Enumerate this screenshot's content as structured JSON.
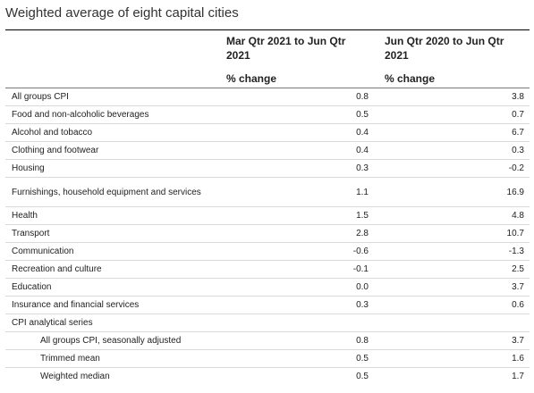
{
  "title": "Weighted average of eight capital cities",
  "columns": [
    {
      "period": "Mar Qtr 2021 to Jun Qtr 2021",
      "unit": "% change"
    },
    {
      "period": "Jun Qtr 2020 to Jun Qtr 2021",
      "unit": "% change"
    }
  ],
  "rows": [
    {
      "label": "All groups CPI",
      "qtr": "0.8",
      "annual": "3.8"
    },
    {
      "label": "Food and non-alcoholic beverages",
      "qtr": "0.5",
      "annual": "0.7"
    },
    {
      "label": "Alcohol and tobacco",
      "qtr": "0.4",
      "annual": "6.7"
    },
    {
      "label": "Clothing and footwear",
      "qtr": "0.4",
      "annual": "0.3"
    },
    {
      "label": "Housing",
      "qtr": "0.3",
      "annual": "-0.2"
    },
    {
      "label": "Furnishings, household equipment and services",
      "qtr": "1.1",
      "annual": "16.9"
    },
    {
      "label": "Health",
      "qtr": "1.5",
      "annual": "4.8"
    },
    {
      "label": "Transport",
      "qtr": "2.8",
      "annual": "10.7"
    },
    {
      "label": "Communication",
      "qtr": "-0.6",
      "annual": "-1.3"
    },
    {
      "label": "Recreation and culture",
      "qtr": "-0.1",
      "annual": "2.5"
    },
    {
      "label": "Education",
      "qtr": "0.0",
      "annual": "3.7"
    },
    {
      "label": "Insurance and financial services",
      "qtr": "0.3",
      "annual": "0.6"
    },
    {
      "label": "CPI analytical series",
      "qtr": "",
      "annual": ""
    },
    {
      "label": "All groups CPI, seasonally adjusted",
      "qtr": "0.8",
      "annual": "3.7"
    },
    {
      "label": "Trimmed mean",
      "qtr": "0.5",
      "annual": "1.6"
    },
    {
      "label": "Weighted median",
      "qtr": "0.5",
      "annual": "1.7"
    }
  ]
}
